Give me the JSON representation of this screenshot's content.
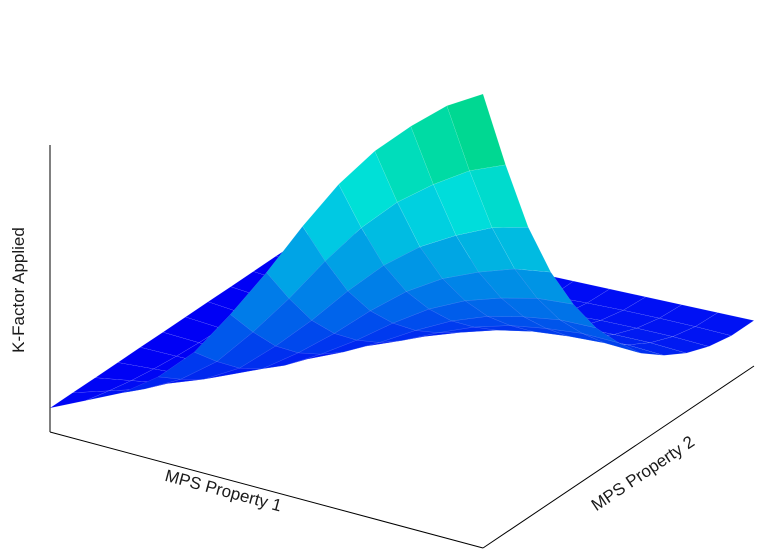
{
  "chart_data": {
    "type": "surface",
    "title": "",
    "xlabel": "MPS Property 1",
    "ylabel": "MPS Property 2",
    "zlabel": "K-Factor Applied",
    "grid": false,
    "legend": "none",
    "colormap": [
      "#0000ff",
      "#00ffff",
      "#00ff80"
    ],
    "x": [
      0,
      1,
      2,
      3,
      4,
      5,
      6,
      7,
      8,
      9,
      10,
      11,
      12
    ],
    "y": [
      0,
      1,
      2,
      3,
      4,
      5,
      6,
      7,
      8,
      9,
      10,
      11,
      12
    ],
    "z_min": 0,
    "z_max": 1,
    "z_edges": {
      "along_property1_at_property2_min": [
        0.0,
        0.04,
        0.08,
        0.14,
        0.22,
        0.33,
        0.45,
        0.58,
        0.7,
        0.8,
        0.88,
        0.95,
        1.0
      ],
      "along_property2_at_property1_min": [
        0.0,
        0.0,
        0.0,
        0.0,
        0.0,
        0.0,
        0.0,
        0.0,
        0.0,
        0.0,
        0.0,
        0.0,
        0.0
      ],
      "along_property2_at_property1_max": [
        1.0,
        0.8,
        0.62,
        0.48,
        0.37,
        0.28,
        0.21,
        0.15,
        0.11,
        0.08,
        0.06,
        0.05,
        0.05
      ]
    }
  }
}
